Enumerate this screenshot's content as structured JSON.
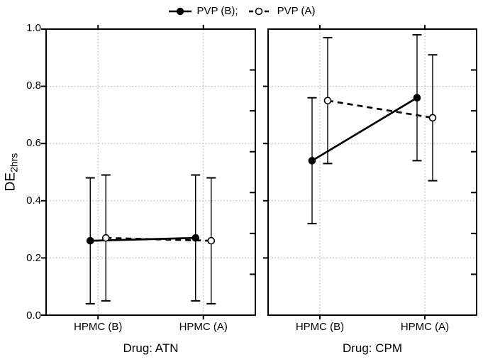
{
  "style": {
    "background": "#ffffff",
    "foreground": "#000000",
    "gridline_color": "#b3b3b3"
  },
  "legend": {
    "position": "top-center",
    "items": [
      {
        "label": "PVP (B);",
        "line_style": "solid",
        "marker": "filled-circle"
      },
      {
        "label": "PVP (A)",
        "line_style": "dashed",
        "marker": "open-circle"
      }
    ]
  },
  "y_axis": {
    "label_main": "DE",
    "label_sub": "2hrs",
    "tick_labels": [
      "1.0",
      "0.8",
      "0.6",
      "0.4",
      "0.2",
      "0.0"
    ],
    "tick_values": [
      1.0,
      0.8,
      0.6,
      0.4,
      0.2,
      0.0
    ],
    "range": [
      0.0,
      1.0
    ]
  },
  "chart_data": [
    {
      "type": "line",
      "panel_title": "Drug: ATN",
      "ylabel": "DE2hrs",
      "ylim": [
        0.0,
        1.0
      ],
      "grid": true,
      "categories": [
        "HPMC (B)",
        "HPMC (A)"
      ],
      "series": [
        {
          "name": "PVP (B)",
          "line": "solid",
          "marker": "filled-circle",
          "values": [
            0.26,
            0.27
          ],
          "err_low": [
            0.04,
            0.05
          ],
          "err_high": [
            0.48,
            0.49
          ]
        },
        {
          "name": "PVP (A)",
          "line": "dashed",
          "marker": "open-circle",
          "values": [
            0.27,
            0.26
          ],
          "err_low": [
            0.05,
            0.04
          ],
          "err_high": [
            0.49,
            0.48
          ]
        }
      ]
    },
    {
      "type": "line",
      "panel_title": "Drug: CPM",
      "ylabel": "DE2hrs",
      "ylim": [
        0.0,
        1.0
      ],
      "grid": true,
      "categories": [
        "HPMC (B)",
        "HPMC (A)"
      ],
      "series": [
        {
          "name": "PVP (B)",
          "line": "solid",
          "marker": "filled-circle",
          "values": [
            0.54,
            0.76
          ],
          "err_low": [
            0.32,
            0.54
          ],
          "err_high": [
            0.76,
            0.98
          ]
        },
        {
          "name": "PVP (A)",
          "line": "dashed",
          "marker": "open-circle",
          "values": [
            0.75,
            0.69
          ],
          "err_low": [
            0.53,
            0.47
          ],
          "err_high": [
            0.97,
            0.91
          ]
        }
      ]
    }
  ]
}
